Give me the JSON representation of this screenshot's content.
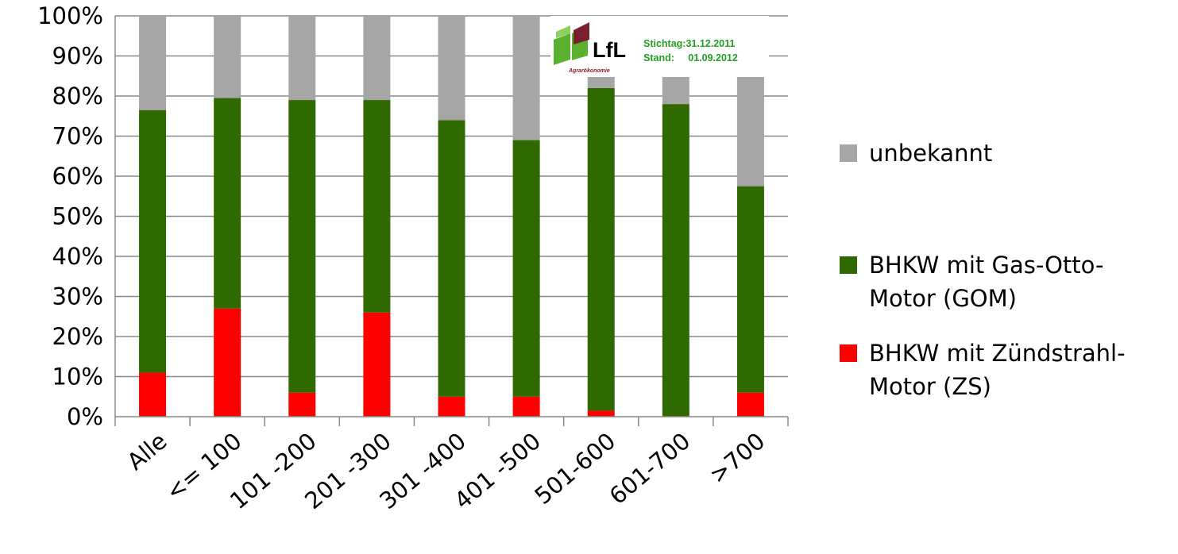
{
  "chart_data": {
    "type": "bar",
    "stacked": true,
    "categories": [
      "Alle",
      "<= 100",
      "101 -200",
      "201 -300",
      "301 -400",
      "401 -500",
      "501-600",
      "601-700",
      ">700"
    ],
    "series": [
      {
        "name": "BHKW mit  Zündstrahl-Motor (ZS)",
        "legend_lines": [
          "BHKW mit  Zündstrahl-",
          "Motor (ZS)"
        ],
        "color": "#ff0000",
        "values": [
          11,
          27,
          6,
          26,
          5,
          5,
          1.5,
          0,
          6
        ]
      },
      {
        "name": "BHKW mit  Gas-Otto-Motor (GOM)",
        "legend_lines": [
          "BHKW mit  Gas-Otto-",
          "Motor (GOM)"
        ],
        "color": "#2e6a00",
        "values": [
          65.5,
          52.5,
          73,
          53,
          69,
          64,
          80.5,
          78,
          51.5
        ]
      },
      {
        "name": "unbekannt",
        "legend_lines": [
          "unbekannt"
        ],
        "color": "#a6a6a6",
        "values": [
          23.5,
          20.5,
          21,
          21,
          26,
          31,
          18,
          22,
          42.5
        ]
      }
    ],
    "legend_order": [
      2,
      1,
      0
    ],
    "ylim": [
      0,
      100
    ],
    "yticks": [
      0,
      10,
      20,
      30,
      40,
      50,
      60,
      70,
      80,
      90,
      100
    ],
    "ytick_labels": [
      "0%",
      "10%",
      "20%",
      "30%",
      "40%",
      "50%",
      "60%",
      "70%",
      "80%",
      "90%",
      "100%"
    ],
    "grid": true,
    "legend_position": "right",
    "title": "",
    "xlabel": "",
    "ylabel": ""
  },
  "overlay": {
    "logo_text": "LfL",
    "logo_subtext": "Agrarökonomie",
    "stamp_line1": "Stichtag:31.12.2011",
    "stamp_line2": "Stand:     01.09.2012",
    "logo_colors": {
      "green": "#5cb030",
      "maroon": "#7a1f2e"
    }
  }
}
